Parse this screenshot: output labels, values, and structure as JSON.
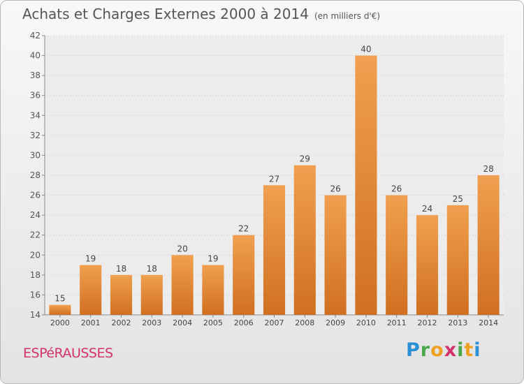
{
  "chart_data": {
    "type": "bar",
    "title": "Achats et Charges Externes 2000 à 2014",
    "subtitle": "(en milliers d'€)",
    "categories": [
      "2000",
      "2001",
      "2002",
      "2003",
      "2004",
      "2005",
      "2006",
      "2007",
      "2008",
      "2009",
      "2010",
      "2011",
      "2012",
      "2013",
      "2014"
    ],
    "values": [
      15,
      19,
      18,
      18,
      20,
      19,
      22,
      27,
      29,
      26,
      40,
      26,
      24,
      25,
      28
    ],
    "ylim": [
      14,
      42
    ],
    "yticks": [
      14,
      16,
      18,
      20,
      22,
      24,
      26,
      28,
      30,
      32,
      34,
      36,
      38,
      40,
      42
    ],
    "grid": true,
    "bar_color": "#f0a050",
    "bar_color_dark": "#d07020"
  },
  "footer": {
    "town": "ESPéRAUSSES",
    "logo": "Proxiti"
  }
}
